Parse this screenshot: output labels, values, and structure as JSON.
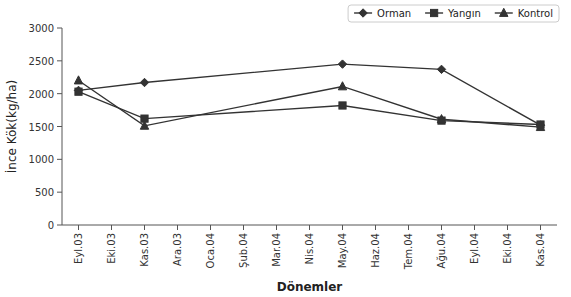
{
  "chart_data": {
    "type": "line",
    "categories": [
      "Eyl.03",
      "Eki.03",
      "Kas.03",
      "Ara.03",
      "Oca.04",
      "Şub.04",
      "Mar.04",
      "Nis.04",
      "May.04",
      "Haz.04",
      "Tem.04",
      "Ağu.04",
      "Eyl.04",
      "Eki.04",
      "Kas.04"
    ],
    "xlabel": "Dönemler",
    "ylabel": "İnce Kök(kg/ha)",
    "ylim": [
      0,
      3000
    ],
    "yticks": [
      0,
      500,
      1000,
      1500,
      2000,
      2500,
      3000
    ],
    "grid": false,
    "legend": "upper-right",
    "series": [
      {
        "name": "Orman",
        "color": "#333333",
        "marker": "diamond",
        "values": [
          2050,
          null,
          2170,
          null,
          null,
          null,
          null,
          null,
          2450,
          null,
          null,
          2370,
          null,
          null,
          1520
        ]
      },
      {
        "name": "Yangın",
        "color": "#333333",
        "marker": "square",
        "values": [
          2030,
          null,
          1620,
          null,
          null,
          null,
          null,
          null,
          1820,
          null,
          null,
          1590,
          null,
          null,
          1530
        ]
      },
      {
        "name": "Kontrol",
        "color": "#333333",
        "marker": "triangle",
        "values": [
          2200,
          null,
          1510,
          null,
          null,
          null,
          null,
          null,
          2110,
          null,
          null,
          1610,
          null,
          null,
          1490
        ]
      }
    ]
  }
}
